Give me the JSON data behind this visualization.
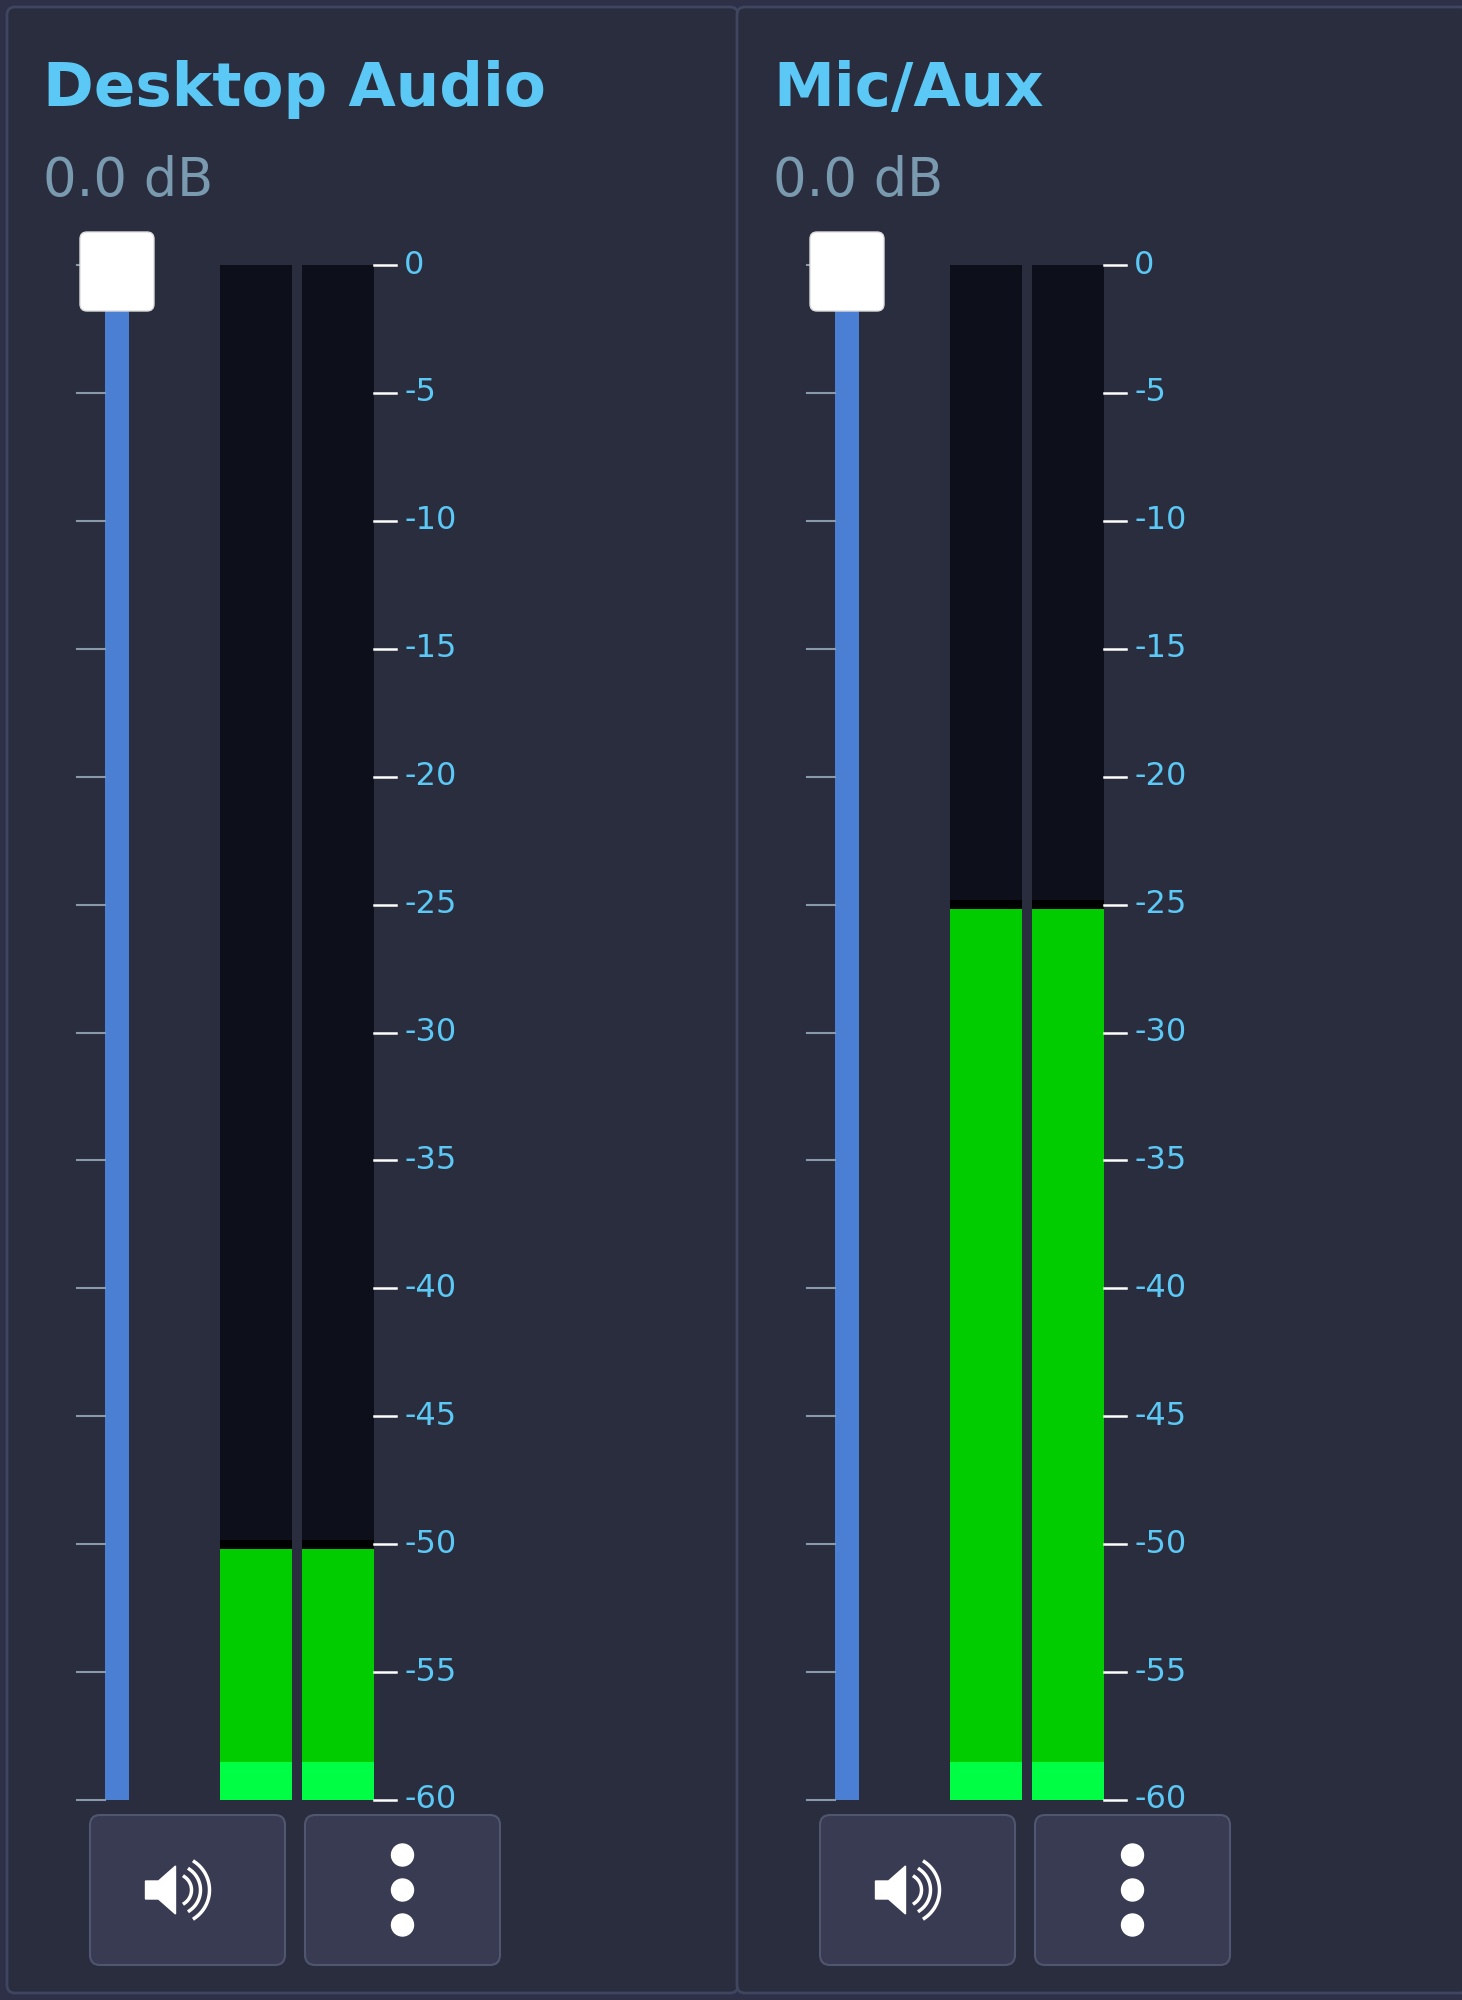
{
  "bg_color": "#2e3047",
  "panel_color": "#2a2d3e",
  "border_color": "#404560",
  "title_color": "#5bc8f5",
  "db_label_color": "#7a9ab0",
  "tick_label_color": "#5bc8f5",
  "slider_color": "#4a7fd4",
  "slider_handle_color": "#ffffff",
  "button_bg": "#383b52",
  "channels": [
    {
      "title": "Desktop Audio",
      "db_display": "0.0 dB",
      "current_level": -50,
      "peak_level": -50
    },
    {
      "title": "Mic/Aux",
      "db_display": "0.0 dB",
      "current_level": -25,
      "peak_level": -25
    }
  ],
  "db_scale": [
    0,
    -5,
    -10,
    -15,
    -20,
    -25,
    -30,
    -35,
    -40,
    -45,
    -50,
    -55,
    -60
  ],
  "db_min": -60,
  "db_max": 0,
  "color_segments": [
    [
      -60,
      -59,
      "#00ff44"
    ],
    [
      -59,
      -20,
      "#00cc00"
    ],
    [
      -20,
      -18,
      "#006600"
    ],
    [
      -18,
      -16,
      "#888800"
    ],
    [
      -16,
      -15,
      "#ccaa00"
    ],
    [
      -15,
      -14,
      "#ffd700"
    ],
    [
      -14,
      -13,
      "#ccaa00"
    ],
    [
      -13,
      -9,
      "#886600"
    ],
    [
      -9,
      -5,
      "#8b0000"
    ],
    [
      -5,
      0,
      "#cc0000"
    ]
  ]
}
